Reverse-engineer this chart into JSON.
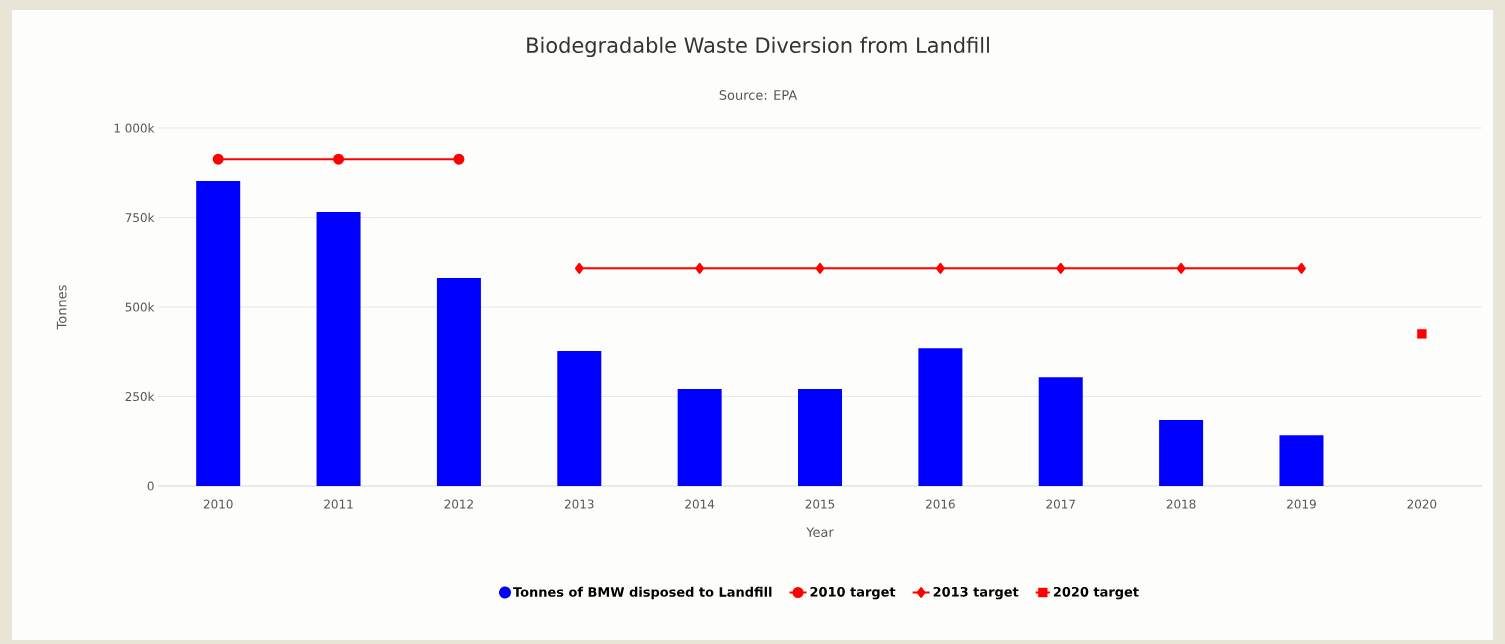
{
  "chart_data": {
    "type": "bar",
    "title": "Biodegradable Waste Diversion from Landfill",
    "subtitle": "Source: EPA",
    "xlabel": "Year",
    "ylabel": "Tonnes",
    "categories": [
      "2010",
      "2011",
      "2012",
      "2013",
      "2014",
      "2015",
      "2016",
      "2017",
      "2018",
      "2019",
      "2020"
    ],
    "series": [
      {
        "name": "Tonnes of BMW disposed to Landfill",
        "color": "#0000ff",
        "values": [
          852000,
          765000,
          581000,
          377000,
          271000,
          271000,
          385000,
          304000,
          184000,
          142000,
          null
        ]
      },
      {
        "name": "2010 target",
        "type": "line",
        "marker": "circle",
        "color": "#ff0000",
        "values": [
          913000,
          913000,
          913000,
          null,
          null,
          null,
          null,
          null,
          null,
          null,
          null
        ]
      },
      {
        "name": "2013 target",
        "type": "line",
        "marker": "diamond",
        "color": "#ff0000",
        "values": [
          null,
          null,
          null,
          608000,
          608000,
          608000,
          608000,
          608000,
          608000,
          608000,
          null
        ]
      },
      {
        "name": "2020 target",
        "type": "scatter",
        "marker": "square",
        "color": "#ff0000",
        "values": [
          null,
          null,
          null,
          null,
          null,
          null,
          null,
          null,
          null,
          null,
          425000
        ]
      }
    ],
    "ylim": [
      0,
      1000000
    ],
    "yticks": [
      0,
      {
        "value": 250000,
        "label": "250k"
      },
      {
        "value": 500000,
        "label": "500k"
      },
      {
        "value": 750000,
        "label": "750k"
      },
      {
        "value": 1000000,
        "label": "1 000k"
      }
    ],
    "grid": "y",
    "legend": "bottom"
  }
}
